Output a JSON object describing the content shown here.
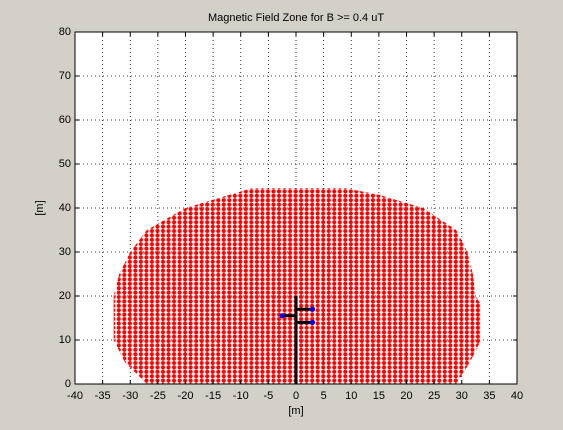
{
  "chart_data": {
    "type": "scatter",
    "title": "Magnetic Field Zone for B >= 0.4 uT",
    "xlabel": "[m]",
    "ylabel": "[m]",
    "xlim": [
      -40,
      40
    ],
    "ylim": [
      0,
      80
    ],
    "xticks": [
      -40,
      -35,
      -30,
      -25,
      -20,
      -15,
      -10,
      -5,
      0,
      5,
      10,
      15,
      20,
      25,
      30,
      35,
      40
    ],
    "yticks": [
      0,
      10,
      20,
      30,
      40,
      50,
      60,
      70,
      80
    ],
    "grid": true,
    "series": [
      {
        "type": "area",
        "color": "#ff0000",
        "x": [
          -27,
          -31,
          -33,
          -33,
          -33,
          -32,
          -30,
          -27,
          -20,
          -12,
          -8,
          9,
          15,
          23,
          29,
          31,
          32,
          32.5,
          33.5,
          33.5,
          31.5,
          29
        ],
        "y": [
          0,
          5,
          10,
          15,
          20,
          25,
          30,
          35,
          40,
          43,
          44.5,
          44.5,
          43,
          40,
          35,
          30,
          25,
          20,
          18,
          10,
          5,
          0
        ]
      },
      {
        "type": "line",
        "color": "#000000",
        "x": [
          0,
          0,
          null,
          -2.5,
          0,
          null,
          0,
          3,
          null,
          0,
          3
        ],
        "y": [
          0,
          20,
          null,
          15.5,
          15.5,
          null,
          17,
          17,
          null,
          14,
          14
        ]
      },
      {
        "type": "points",
        "color": "#0000ff",
        "x": [
          -2.5,
          3,
          3
        ],
        "y": [
          15.5,
          17,
          14
        ]
      }
    ]
  }
}
